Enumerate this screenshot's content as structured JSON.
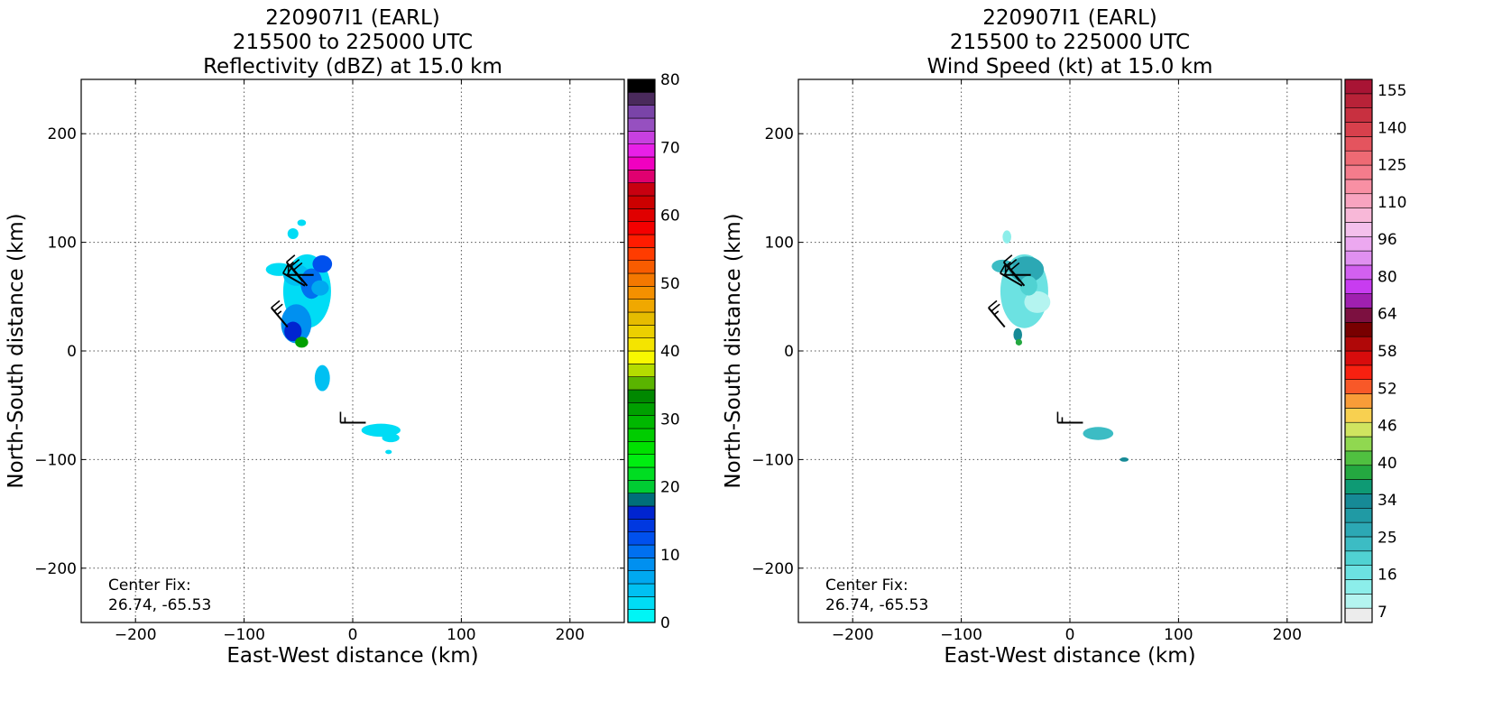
{
  "chart_data": [
    {
      "type": "heatmap",
      "title_lines": [
        "220907I1 (EARL)",
        "215500 to 225000 UTC",
        "Reflectivity (dBZ) at 15.0 km"
      ],
      "xlabel": "East-West distance (km)",
      "ylabel": "North-South distance (km)",
      "xlim": [
        -250,
        250
      ],
      "ylim": [
        -250,
        250
      ],
      "xticks": [
        -200,
        -100,
        0,
        100,
        200
      ],
      "yticks": [
        -200,
        -100,
        0,
        100,
        200
      ],
      "xtick_labels": [
        "−200",
        "−100",
        "0",
        "100",
        "200"
      ],
      "ytick_labels": [
        "−200",
        "−100",
        "0",
        "100",
        "200"
      ],
      "grid": true,
      "annotation_lines": [
        "Center Fix:",
        "26.74, -65.53"
      ],
      "colorbar": {
        "levels": 40,
        "tick_values": [
          0,
          10,
          20,
          30,
          40,
          50,
          60,
          70,
          80
        ],
        "tick_labels": [
          "0",
          "10",
          "20",
          "30",
          "40",
          "50",
          "60",
          "70",
          "80"
        ],
        "colors": [
          "#00f5f5",
          "#00dcf5",
          "#00c0f2",
          "#00a8f0",
          "#0090f0",
          "#0070f0",
          "#0050ee",
          "#0038e0",
          "#0024d0",
          "#006e7a",
          "#00cc33",
          "#00dd22",
          "#00ee11",
          "#00e000",
          "#00cc00",
          "#00b800",
          "#00a000",
          "#008800",
          "#5ab400",
          "#b4dc00",
          "#f8f800",
          "#f4e400",
          "#ecd000",
          "#e6bc00",
          "#f0a800",
          "#f49000",
          "#f47800",
          "#f85c00",
          "#ff3c00",
          "#ff1c00",
          "#f40000",
          "#e00000",
          "#cc0000",
          "#c80010",
          "#e00070",
          "#f000c0",
          "#e820e8",
          "#c840e0",
          "#9650c0",
          "#7a44a8",
          "#4a2a5c",
          "#000000"
        ]
      },
      "echo_regions": [
        {
          "cx": -42,
          "cy": 55,
          "rx": 22,
          "ry": 34,
          "color": "#00dcf5"
        },
        {
          "cx": -52,
          "cy": 70,
          "rx": 12,
          "ry": 10,
          "color": "#00c0f2"
        },
        {
          "cx": -38,
          "cy": 62,
          "rx": 10,
          "ry": 14,
          "color": "#0070f0"
        },
        {
          "cx": -28,
          "cy": 80,
          "rx": 9,
          "ry": 8,
          "color": "#0050ee"
        },
        {
          "cx": -30,
          "cy": 58,
          "rx": 8,
          "ry": 7,
          "color": "#00a8f0"
        },
        {
          "cx": -52,
          "cy": 25,
          "rx": 14,
          "ry": 18,
          "color": "#0090f0"
        },
        {
          "cx": -55,
          "cy": 18,
          "rx": 8,
          "ry": 9,
          "color": "#0024d0"
        },
        {
          "cx": -47,
          "cy": 8,
          "rx": 6,
          "ry": 5,
          "color": "#00a000"
        },
        {
          "cx": -68,
          "cy": 75,
          "rx": 12,
          "ry": 6,
          "color": "#00dcf5"
        },
        {
          "cx": -55,
          "cy": 108,
          "rx": 5,
          "ry": 5,
          "color": "#00dcf5"
        },
        {
          "cx": -47,
          "cy": 118,
          "rx": 4,
          "ry": 3,
          "color": "#00dcf5"
        },
        {
          "cx": -28,
          "cy": -25,
          "rx": 7,
          "ry": 12,
          "color": "#00c0f2"
        },
        {
          "cx": 26,
          "cy": -73,
          "rx": 18,
          "ry": 6,
          "color": "#00dcf5"
        },
        {
          "cx": 35,
          "cy": -80,
          "rx": 8,
          "ry": 4,
          "color": "#00dcf5"
        },
        {
          "cx": 33,
          "cy": -93,
          "rx": 3,
          "ry": 2,
          "color": "#00dcf5"
        }
      ],
      "wind_barbs": [
        {
          "x": -46,
          "y": 64,
          "dir": 320,
          "speed": 15
        },
        {
          "x": -42,
          "y": 60,
          "dir": 320,
          "speed": 20
        },
        {
          "x": -36,
          "y": 70,
          "dir": 270,
          "speed": 10
        },
        {
          "x": -44,
          "y": 60,
          "dir": 300,
          "speed": 20
        },
        {
          "x": -60,
          "y": 22,
          "dir": 320,
          "speed": 25
        },
        {
          "x": 12,
          "y": -66,
          "dir": 270,
          "speed": 15
        }
      ]
    },
    {
      "type": "heatmap",
      "title_lines": [
        "220907I1 (EARL)",
        "215500 to 225000 UTC",
        "Wind Speed (kt) at 15.0 km"
      ],
      "xlabel": "East-West distance (km)",
      "ylabel": "North-South distance (km)",
      "xlim": [
        -250,
        250
      ],
      "ylim": [
        -250,
        250
      ],
      "xticks": [
        -200,
        -100,
        0,
        100,
        200
      ],
      "yticks": [
        -200,
        -100,
        0,
        100,
        200
      ],
      "xtick_labels": [
        "−200",
        "−100",
        "0",
        "100",
        "200"
      ],
      "ytick_labels": [
        "−200",
        "−100",
        "0",
        "100",
        "200"
      ],
      "grid": true,
      "annotation_lines": [
        "Center Fix:",
        "26.74, -65.53"
      ],
      "colorbar": {
        "levels": 29,
        "tick_values": [
          7,
          16,
          25,
          34,
          40,
          46,
          52,
          58,
          64,
          80,
          96,
          110,
          125,
          140,
          155
        ],
        "tick_labels": [
          "7",
          "16",
          "25",
          "34",
          "40",
          "46",
          "52",
          "58",
          "64",
          "80",
          "96",
          "110",
          "125",
          "140",
          "155"
        ],
        "colors": [
          "#ececec",
          "#b4f4f0",
          "#8ceeea",
          "#6ce2e2",
          "#50d2d2",
          "#3cbcc4",
          "#2ca8b4",
          "#209aa4",
          "#168a96",
          "#0e9a74",
          "#24a840",
          "#50c040",
          "#90d850",
          "#d0e460",
          "#f8d050",
          "#f89c38",
          "#f85828",
          "#f82010",
          "#d80c0c",
          "#b00808",
          "#780000",
          "#7c1040",
          "#a020b0",
          "#c83cf0",
          "#d260f0",
          "#e090f0",
          "#eca8f0",
          "#f4c0ec",
          "#f8b8d8",
          "#f8a4c0",
          "#f890a4",
          "#f47c8c",
          "#ee6a74",
          "#e4545e",
          "#d8404c",
          "#c83040",
          "#b82238",
          "#a81434"
        ]
      },
      "echo_regions": [
        {
          "cx": -42,
          "cy": 55,
          "rx": 22,
          "ry": 34,
          "color": "#6ce2e2"
        },
        {
          "cx": -40,
          "cy": 75,
          "rx": 16,
          "ry": 12,
          "color": "#2ca8b4"
        },
        {
          "cx": -62,
          "cy": 78,
          "rx": 10,
          "ry": 6,
          "color": "#3cbcc4"
        },
        {
          "cx": -30,
          "cy": 45,
          "rx": 12,
          "ry": 10,
          "color": "#b4f4f0"
        },
        {
          "cx": -38,
          "cy": 60,
          "rx": 8,
          "ry": 9,
          "color": "#50d2d2"
        },
        {
          "cx": -48,
          "cy": 15,
          "rx": 4,
          "ry": 6,
          "color": "#168a96"
        },
        {
          "cx": -47,
          "cy": 8,
          "rx": 3,
          "ry": 3,
          "color": "#24a840"
        },
        {
          "cx": -58,
          "cy": 105,
          "rx": 4,
          "ry": 6,
          "color": "#8ceeea"
        },
        {
          "cx": 26,
          "cy": -76,
          "rx": 14,
          "ry": 6,
          "color": "#3cbcc4"
        },
        {
          "cx": 50,
          "cy": -100,
          "rx": 4,
          "ry": 2,
          "color": "#168a96"
        }
      ],
      "wind_barbs": [
        {
          "x": -46,
          "y": 64,
          "dir": 320,
          "speed": 15
        },
        {
          "x": -42,
          "y": 60,
          "dir": 320,
          "speed": 20
        },
        {
          "x": -36,
          "y": 70,
          "dir": 270,
          "speed": 10
        },
        {
          "x": -44,
          "y": 60,
          "dir": 300,
          "speed": 20
        },
        {
          "x": -60,
          "y": 22,
          "dir": 320,
          "speed": 25
        },
        {
          "x": 12,
          "y": -66,
          "dir": 270,
          "speed": 15
        }
      ]
    }
  ]
}
